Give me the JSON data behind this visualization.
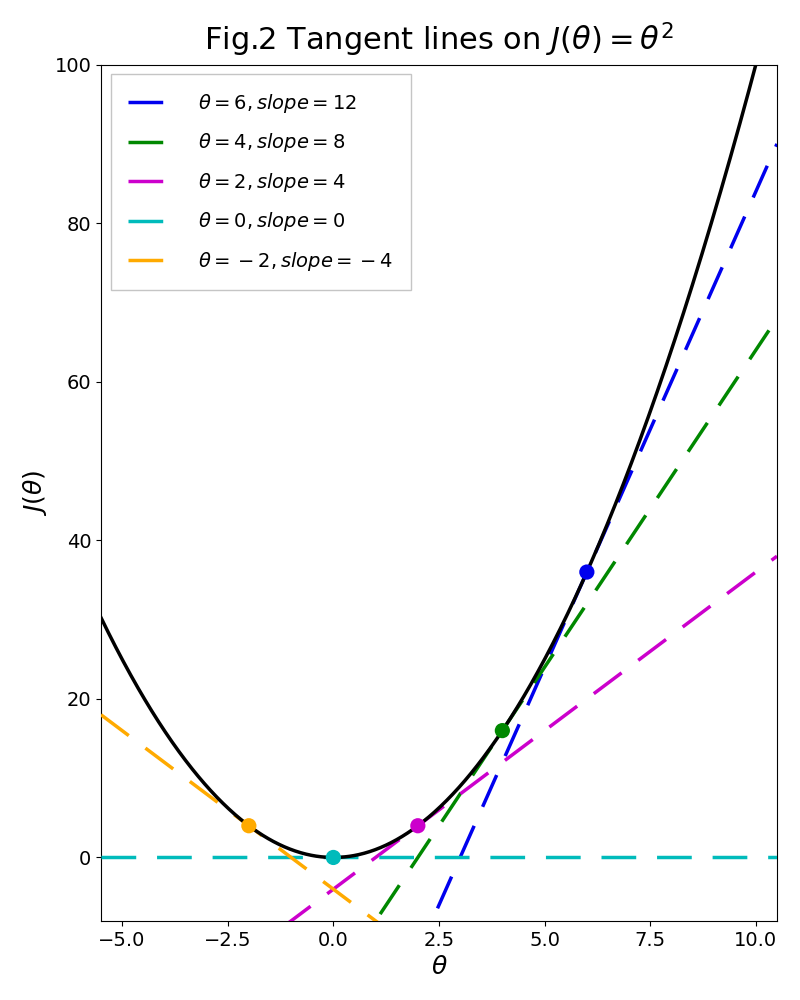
{
  "title": "Fig.2 Tangent lines on $J(\\theta) = \\theta^2$",
  "xlabel": "$\\theta$",
  "ylabel": "$J(\\theta)$",
  "xlim": [
    -5.5,
    10.5
  ],
  "ylim": [
    -8,
    100
  ],
  "x_ticks": [
    -5.0,
    -2.5,
    0.0,
    2.5,
    5.0,
    7.5,
    10.0
  ],
  "y_ticks": [
    0,
    20,
    40,
    60,
    80,
    100
  ],
  "curve_color": "#000000",
  "tangent_points": [
    {
      "theta": 6,
      "slope": 12,
      "color": "#0000ee",
      "label": "$\\theta = 6, slope = 12$"
    },
    {
      "theta": 4,
      "slope": 8,
      "color": "#008800",
      "label": "$\\theta = 4, slope = 8$"
    },
    {
      "theta": 2,
      "slope": 4,
      "color": "#cc00cc",
      "label": "$\\theta = 2, slope = 4$"
    },
    {
      "theta": 0,
      "slope": 0,
      "color": "#00bbbb",
      "label": "$\\theta = 0, slope = 0$"
    },
    {
      "theta": -2,
      "slope": -4,
      "color": "#ffaa00",
      "label": "$\\theta = -2, slope = -4$"
    }
  ],
  "dot_size": 120,
  "figsize": [
    8.0,
    10.0
  ],
  "dpi": 100,
  "title_fontsize": 22,
  "label_fontsize": 18,
  "tick_fontsize": 14,
  "legend_fontsize": 14
}
